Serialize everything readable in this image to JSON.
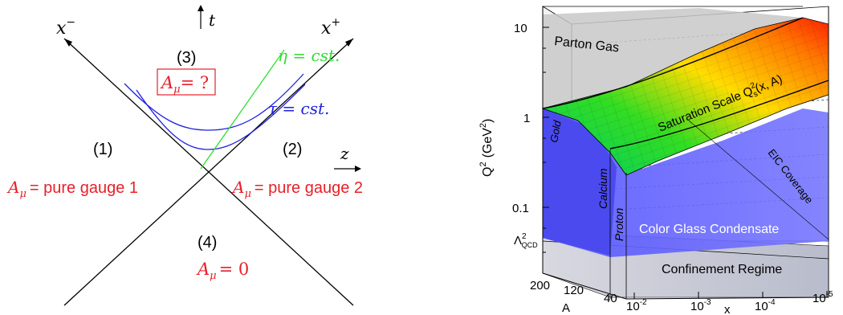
{
  "left_diagram": {
    "axis_t": "t",
    "axis_z": "z",
    "x_minus": "x",
    "x_minus_sup": "−",
    "x_plus": "x",
    "x_plus_sup": "+",
    "regions": {
      "r1": "(1)",
      "r2": "(2)",
      "r3": "(3)",
      "r4": "(4)"
    },
    "a_mu_base": "A",
    "a_mu_sub": "μ",
    "r1_value": "= pure gauge 1",
    "r2_value": "= pure gauge 2",
    "r3_value": "= ?",
    "r4_value": "= 0",
    "eta_label": "η = cst.",
    "tau_label": "τ = cst.",
    "colors": {
      "red": "#e8202a",
      "green": "#33dd33",
      "blue": "#1f1fe0"
    }
  },
  "right_diagram": {
    "y_axis_label": "Q",
    "y_axis_label_sup1": "2",
    "y_axis_label_unit": "(GeV",
    "y_axis_label_sup2": "2",
    "y_axis_label_close": ")",
    "y_ticks": [
      "10",
      "1",
      "0.1"
    ],
    "lambda_qcd": "Λ",
    "lambda_sup": "2",
    "lambda_sub": "QCD",
    "a_axis_label": "A",
    "a_ticks": [
      "200",
      "120",
      "40"
    ],
    "x_axis_label": "x",
    "x_ticks_base": "10",
    "x_ticks_exp": [
      "-2",
      "-3",
      "-4",
      "-5"
    ],
    "regions": {
      "parton_gas": "Parton Gas",
      "saturation": "Saturation Scale Q",
      "saturation_sub": "s",
      "saturation_sup": "2",
      "saturation_args": "(x, A)",
      "cgc": "Color Glass Condensate",
      "confinement": "Confinement Regime",
      "eic": "EIC Coverage",
      "gold": "Gold",
      "calcium": "Calcium",
      "proton": "Proton"
    }
  }
}
